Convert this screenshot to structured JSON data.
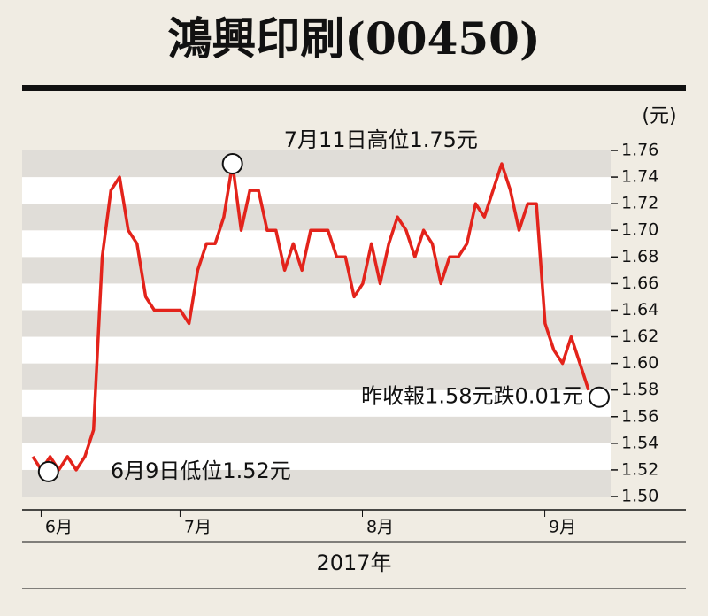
{
  "chart_data": {
    "type": "line",
    "title": "鴻興印刷(00450)",
    "y_unit": "(元)",
    "x_label": "2017年",
    "categories": [
      null,
      null,
      null,
      "6月",
      null,
      null,
      null,
      null,
      null,
      null,
      null,
      null,
      null,
      null,
      null,
      null,
      null,
      null,
      null,
      "7月",
      null,
      null,
      null,
      null,
      null,
      null,
      null,
      null,
      null,
      null,
      null,
      null,
      null,
      null,
      null,
      null,
      null,
      null,
      null,
      null,
      "8月",
      null,
      null,
      null,
      null,
      null,
      null,
      null,
      null,
      null,
      null,
      null,
      null,
      null,
      null,
      null,
      null,
      null,
      null,
      null,
      null,
      "9月",
      null,
      null,
      null
    ],
    "series": [
      {
        "color": "#e3231b",
        "values": [
          1.53,
          1.52,
          1.53,
          1.52,
          1.53,
          1.52,
          1.53,
          1.55,
          1.68,
          1.73,
          1.74,
          1.7,
          1.69,
          1.65,
          1.64,
          1.64,
          1.64,
          1.64,
          1.63,
          1.67,
          1.69,
          1.69,
          1.71,
          1.75,
          1.7,
          1.73,
          1.73,
          1.7,
          1.7,
          1.67,
          1.69,
          1.67,
          1.7,
          1.7,
          1.7,
          1.68,
          1.68,
          1.65,
          1.66,
          1.69,
          1.66,
          1.69,
          1.71,
          1.7,
          1.68,
          1.7,
          1.69,
          1.66,
          1.68,
          1.68,
          1.69,
          1.72,
          1.71,
          1.73,
          1.75,
          1.73,
          1.7,
          1.72,
          1.72,
          1.63,
          1.61,
          1.6,
          1.62,
          1.6,
          1.58
        ]
      }
    ],
    "annotations": {
      "low": "6月9日低位1.52元",
      "high": "7月11日高位1.75元",
      "last": "昨收報1.58元跌0.01元"
    },
    "ylim": [
      1.5,
      1.76
    ],
    "yticks": [
      {
        "value": 1.5,
        "label": "1.50"
      },
      1.52,
      1.54,
      1.56,
      1.58,
      {
        "value": 1.6,
        "label": "1.60"
      },
      1.62,
      1.64,
      1.66,
      1.68,
      {
        "value": 1.7,
        "label": "1.70"
      },
      1.72,
      1.74,
      1.76
    ],
    "grid": true
  }
}
